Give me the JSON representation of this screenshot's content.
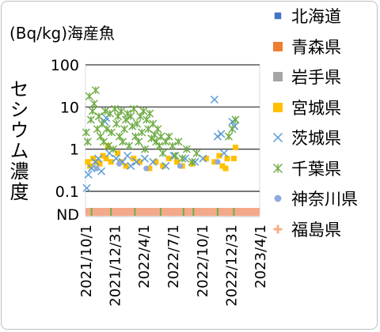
{
  "chart_data": {
    "type": "scatter",
    "title": "(Bq/kg)海産魚",
    "ylabel": "セシウム濃度",
    "y_scale": "log",
    "ylim": [
      0.03,
      100
    ],
    "y_ticks": [
      {
        "value": 100,
        "label": "100"
      },
      {
        "value": 10,
        "label": "10"
      },
      {
        "value": 1,
        "label": "1"
      },
      {
        "value": 0.1,
        "label": "0.1"
      }
    ],
    "nd_label": "ND",
    "xlim": [
      "2021-10-01",
      "2023-04-01"
    ],
    "x_ticks": [
      "2021/10/1",
      "2021/12/31",
      "2022/4/1",
      "2022/7/1",
      "2022/10/1",
      "2022/12/31",
      "2023/4/1"
    ],
    "grid": true,
    "legend_position": "right",
    "series": [
      {
        "name": "北海道",
        "marker": "square-small",
        "color": "#4472c4",
        "points": []
      },
      {
        "name": "青森県",
        "marker": "square",
        "color": "#ed7d31",
        "points": []
      },
      {
        "name": "岩手県",
        "marker": "square",
        "color": "#a5a5a5",
        "points": []
      },
      {
        "name": "宮城県",
        "marker": "square",
        "color": "#ffc000",
        "points": [
          [
            "2021-10-08",
            0.5
          ],
          [
            "2021-10-15",
            0.4
          ],
          [
            "2021-10-25",
            0.6
          ],
          [
            "2021-11-05",
            0.5
          ],
          [
            "2021-11-15",
            0.45
          ],
          [
            "2021-11-25",
            0.7
          ],
          [
            "2021-12-05",
            0.6
          ],
          [
            "2021-12-10",
            1.2
          ],
          [
            "2021-12-20",
            0.5
          ],
          [
            "2022-01-10",
            0.8
          ],
          [
            "2022-01-20",
            0.5
          ],
          [
            "2022-02-05",
            0.4
          ],
          [
            "2022-03-01",
            0.6
          ],
          [
            "2022-03-20",
            0.5
          ],
          [
            "2022-04-20",
            0.35
          ],
          [
            "2022-05-10",
            0.5
          ],
          [
            "2022-06-01",
            0.4
          ],
          [
            "2022-06-20",
            0.6
          ],
          [
            "2022-07-15",
            0.5
          ],
          [
            "2022-08-01",
            0.4
          ],
          [
            "2022-09-01",
            0.45
          ],
          [
            "2022-10-15",
            0.6
          ],
          [
            "2022-11-10",
            0.5
          ],
          [
            "2022-11-25",
            0.7
          ],
          [
            "2022-12-05",
            0.4
          ],
          [
            "2022-12-15",
            0.35
          ],
          [
            "2022-12-20",
            0.6
          ],
          [
            "2023-01-10",
            0.6
          ],
          [
            "2023-01-15",
            1.1
          ]
        ]
      },
      {
        "name": "茨城県",
        "marker": "x",
        "color": "#5b9bd5",
        "points": [
          [
            "2021-10-05",
            0.12
          ],
          [
            "2021-10-10",
            0.25
          ],
          [
            "2021-10-20",
            0.35
          ],
          [
            "2021-11-01",
            0.5
          ],
          [
            "2021-11-10",
            0.6
          ],
          [
            "2021-11-20",
            0.3
          ],
          [
            "2021-12-01",
            4.5
          ],
          [
            "2021-12-05",
            5.5
          ],
          [
            "2021-12-15",
            0.8
          ],
          [
            "2022-01-05",
            0.6
          ],
          [
            "2022-01-25",
            0.5
          ],
          [
            "2022-02-10",
            0.7
          ],
          [
            "2022-02-20",
            0.4
          ],
          [
            "2022-03-10",
            0.5
          ],
          [
            "2022-04-05",
            0.6
          ],
          [
            "2022-05-01",
            0.5
          ],
          [
            "2022-06-10",
            0.4
          ],
          [
            "2022-07-05",
            0.7
          ],
          [
            "2022-08-10",
            0.6
          ],
          [
            "2022-09-10",
            0.5
          ],
          [
            "2022-10-05",
            0.6
          ],
          [
            "2022-11-10",
            15
          ],
          [
            "2022-11-20",
            2
          ],
          [
            "2022-12-01",
            2.3
          ],
          [
            "2022-12-10",
            0.8
          ],
          [
            "2023-01-05",
            4.5
          ],
          [
            "2023-01-12",
            3.5
          ]
        ]
      },
      {
        "name": "千葉県",
        "marker": "star",
        "color": "#70ad47",
        "points": [
          [
            "2021-10-03",
            2.5
          ],
          [
            "2021-10-08",
            1.5
          ],
          [
            "2021-10-13",
            18
          ],
          [
            "2021-10-18",
            5
          ],
          [
            "2021-10-23",
            8
          ],
          [
            "2021-10-28",
            12
          ],
          [
            "2021-11-02",
            25
          ],
          [
            "2021-11-07",
            3
          ],
          [
            "2021-11-12",
            6
          ],
          [
            "2021-11-17",
            2
          ],
          [
            "2021-11-22",
            4
          ],
          [
            "2021-11-27",
            1.5
          ],
          [
            "2021-12-02",
            8
          ],
          [
            "2021-12-07",
            3
          ],
          [
            "2021-12-12",
            1.2
          ],
          [
            "2021-12-17",
            7
          ],
          [
            "2021-12-22",
            2.5
          ],
          [
            "2021-12-27",
            1
          ],
          [
            "2022-01-01",
            9
          ],
          [
            "2022-01-06",
            4
          ],
          [
            "2022-01-11",
            6
          ],
          [
            "2022-01-16",
            2
          ],
          [
            "2022-01-21",
            8
          ],
          [
            "2022-01-26",
            1.5
          ],
          [
            "2022-01-31",
            3
          ],
          [
            "2022-02-05",
            5
          ],
          [
            "2022-02-10",
            7
          ],
          [
            "2022-02-15",
            1.2
          ],
          [
            "2022-02-20",
            6
          ],
          [
            "2022-02-25",
            3.5
          ],
          [
            "2022-03-02",
            9
          ],
          [
            "2022-03-07",
            2
          ],
          [
            "2022-03-12",
            4
          ],
          [
            "2022-03-17",
            1.5
          ],
          [
            "2022-03-22",
            6
          ],
          [
            "2022-03-27",
            2.5
          ],
          [
            "2022-04-01",
            8
          ],
          [
            "2022-04-06",
            1
          ],
          [
            "2022-04-11",
            5
          ],
          [
            "2022-04-16",
            3
          ],
          [
            "2022-04-21",
            7
          ],
          [
            "2022-04-26",
            1.8
          ],
          [
            "2022-05-01",
            4
          ],
          [
            "2022-05-06",
            2.2
          ],
          [
            "2022-05-11",
            1.5
          ],
          [
            "2022-05-16",
            3
          ],
          [
            "2022-05-21",
            1.2
          ],
          [
            "2022-05-26",
            2
          ],
          [
            "2022-06-01",
            0.8
          ],
          [
            "2022-06-10",
            1.5
          ],
          [
            "2022-06-20",
            2
          ],
          [
            "2022-07-01",
            1.2
          ],
          [
            "2022-07-10",
            0.7
          ],
          [
            "2022-07-20",
            1.5
          ],
          [
            "2022-08-01",
            0.6
          ],
          [
            "2022-08-15",
            1
          ],
          [
            "2022-09-01",
            0.5
          ],
          [
            "2022-09-15",
            0.8
          ],
          [
            "2022-12-25",
            2
          ],
          [
            "2023-01-05",
            3
          ],
          [
            "2023-01-15",
            5
          ]
        ]
      },
      {
        "name": "神奈川県",
        "marker": "circle",
        "color": "#8faadc",
        "points": [
          [
            "2021-11-05",
            0.35
          ],
          [
            "2022-01-15",
            0.45
          ],
          [
            "2022-04-10",
            0.35
          ],
          [
            "2022-07-25",
            0.4
          ],
          [
            "2022-11-20",
            0.5
          ]
        ]
      },
      {
        "name": "福島県",
        "marker": "plus",
        "color": "#f4b183",
        "points": "ND"
      }
    ]
  }
}
